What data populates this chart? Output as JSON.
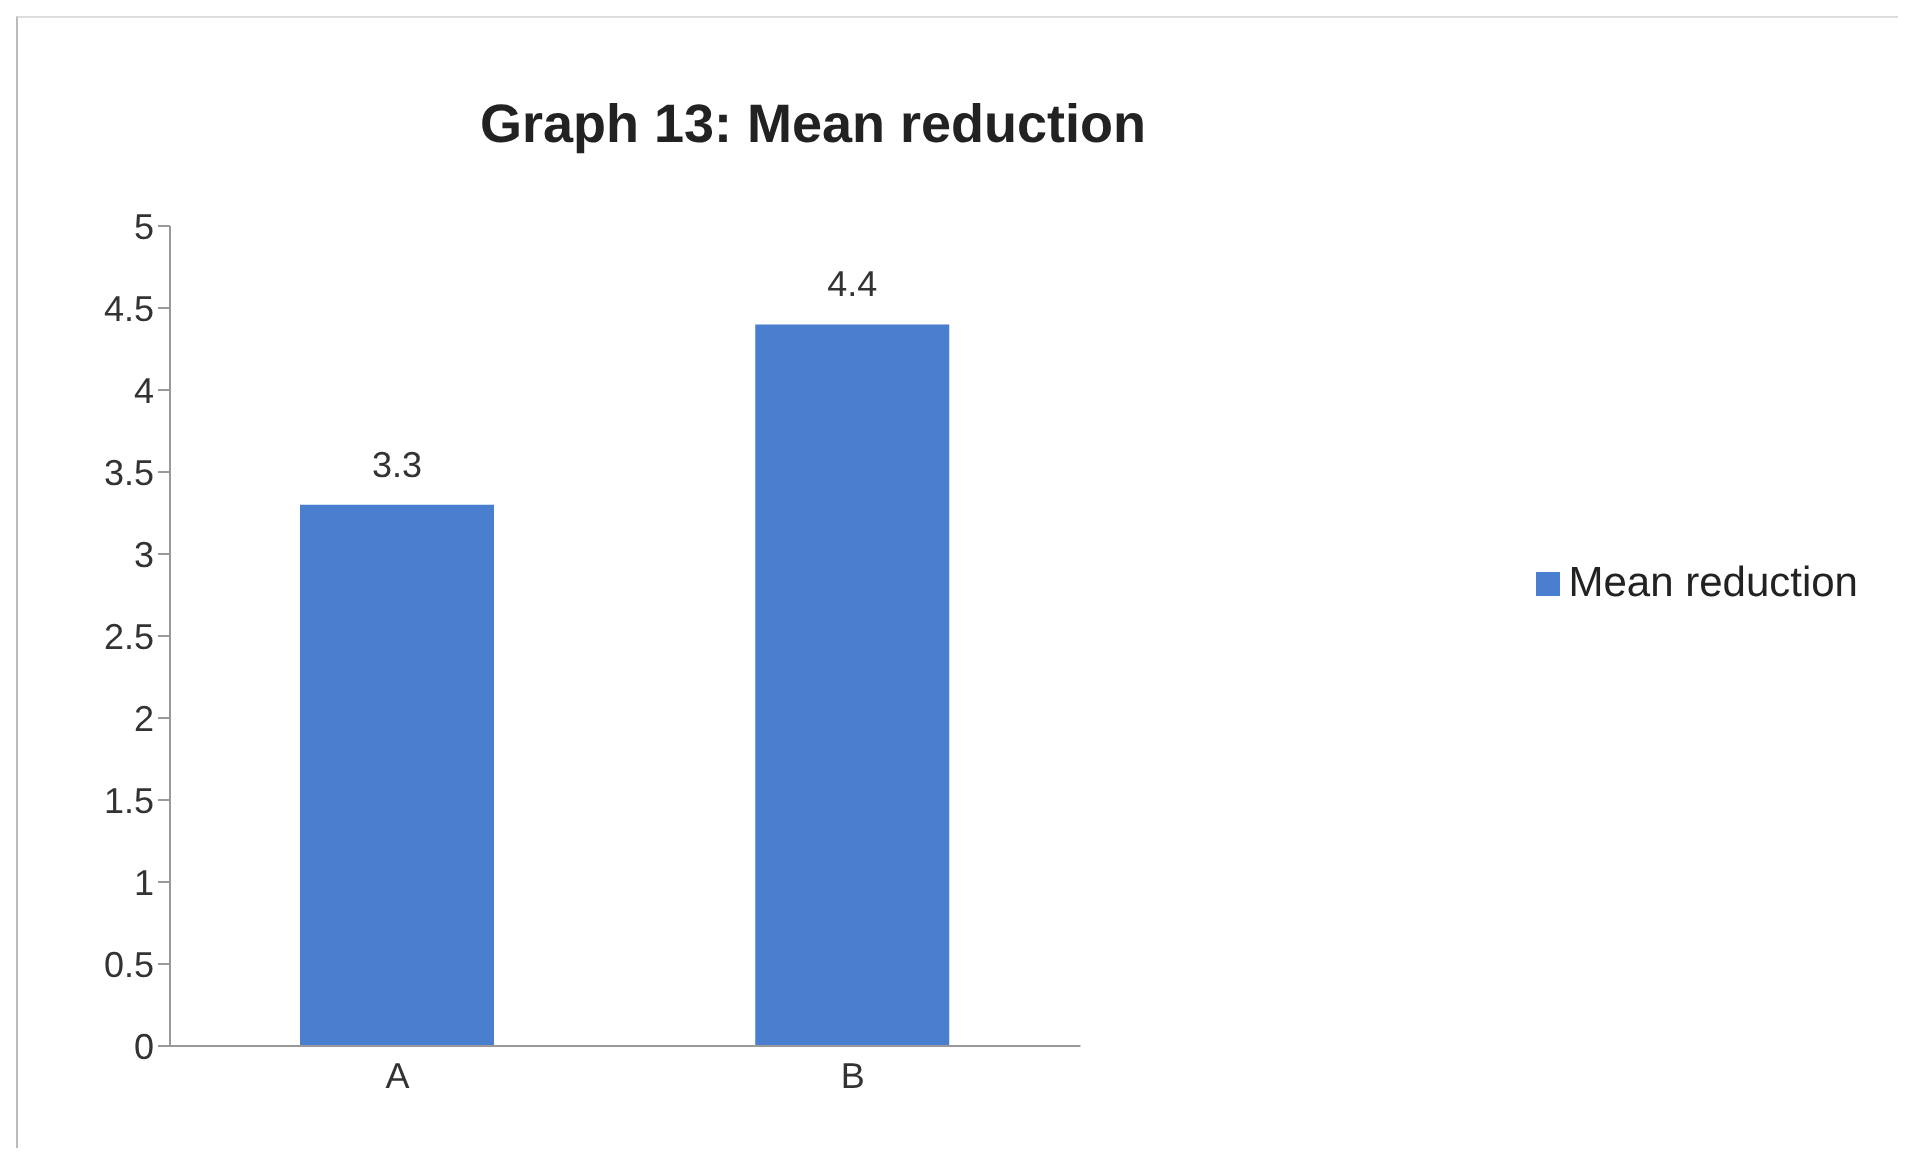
{
  "chart_data": {
    "type": "bar",
    "title": "Graph 13: Mean reduction",
    "categories": [
      "A",
      "B"
    ],
    "series": [
      {
        "name": "Mean reduction",
        "color": "#4a7fd0",
        "values": [
          3.3,
          4.4
        ]
      }
    ],
    "ylim": [
      0,
      5
    ],
    "yticks": [
      0,
      0.5,
      1,
      1.5,
      2,
      2.5,
      3,
      3.5,
      4,
      4.5,
      5
    ],
    "grid": false,
    "legend": "right",
    "data_labels": true
  }
}
